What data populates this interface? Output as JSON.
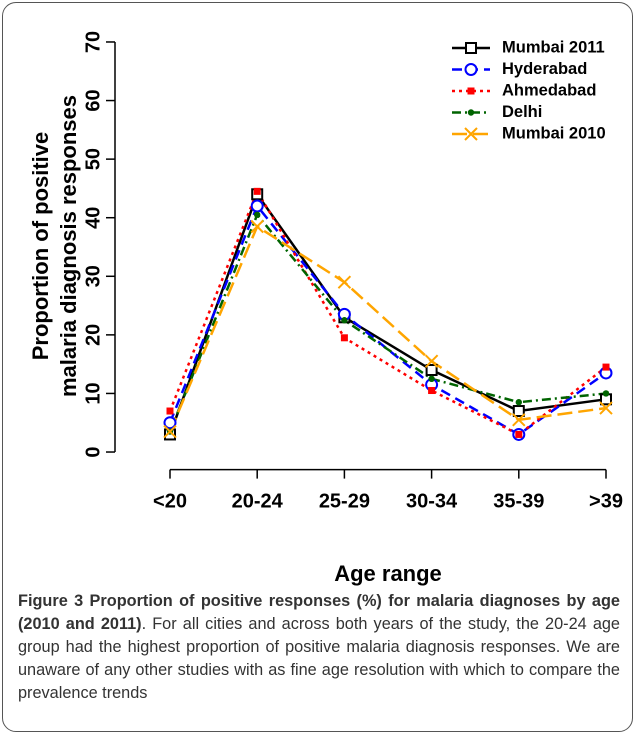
{
  "chart_data": {
    "type": "line",
    "xlabel": "Age range",
    "ylabel": [
      "Proportion of positive",
      "malaria diagnosis responses"
    ],
    "categories": [
      "<20",
      "20-24",
      "25-29",
      "30-34",
      "35-39",
      ">39"
    ],
    "ylim": [
      -3,
      73
    ],
    "yticks": [
      0,
      10,
      20,
      30,
      40,
      50,
      60,
      70
    ],
    "legend": "top-right",
    "series": [
      {
        "name": "Mumbai 2011",
        "color": "#000000",
        "marker": "square-open",
        "dash": "solid",
        "values": [
          3,
          44,
          23,
          14,
          7,
          9
        ]
      },
      {
        "name": "Hyderabad",
        "color": "#0000ff",
        "marker": "circle-open",
        "dash": "dashed",
        "values": [
          5,
          42,
          23.5,
          11.5,
          3,
          13.5
        ]
      },
      {
        "name": "Ahmedabad",
        "color": "#ff0000",
        "marker": "square-filled",
        "dash": "dotted",
        "values": [
          7,
          44.5,
          19.5,
          10.5,
          3,
          14.5
        ]
      },
      {
        "name": "Delhi",
        "color": "#006400",
        "marker": "circle-filled",
        "dash": "dotdash",
        "values": [
          3.5,
          40.5,
          22.5,
          12.5,
          8.5,
          10
        ]
      },
      {
        "name": "Mumbai 2010",
        "color": "#ffa500",
        "marker": "x",
        "dash": "longdash",
        "values": [
          3.5,
          38.5,
          29,
          15.5,
          5.5,
          7.5
        ]
      }
    ]
  },
  "caption": {
    "label": "Figure 3",
    "title": "Proportion of positive responses (%) for malaria diagnoses by age (2010 and 2011)",
    "text": ". For all cities and across both years of the study, the 20-24 age group had the highest proportion of positive malaria diagnosis responses. We are unaware of any other studies with as fine age resolution with which to compare the prevalence trends"
  }
}
